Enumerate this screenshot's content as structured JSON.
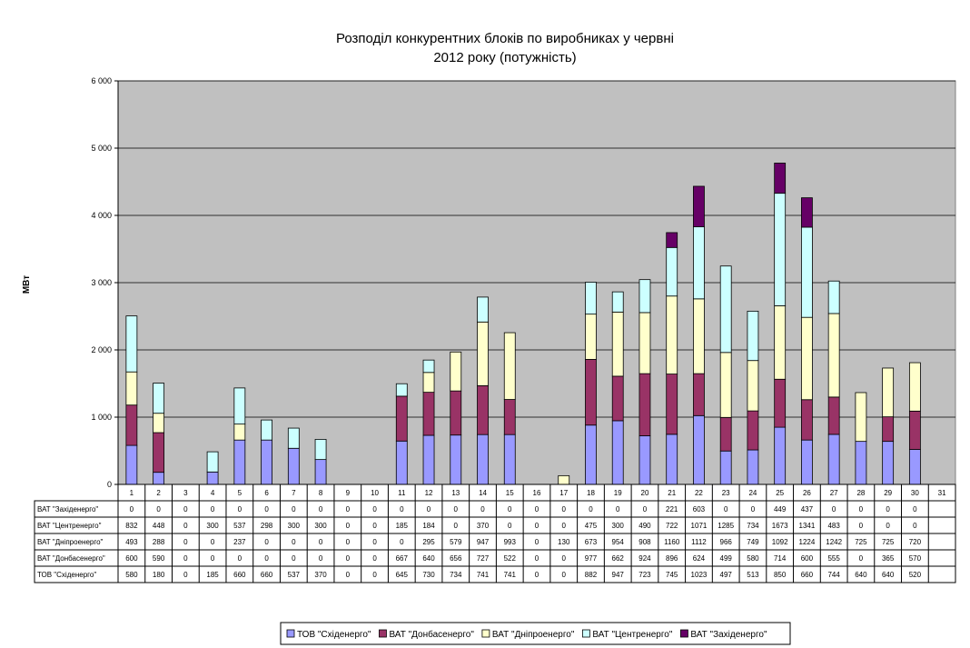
{
  "chart_data": {
    "type": "bar",
    "stacked": true,
    "title": [
      "Розподіл конкурентних блоків по виробниках у червні",
      "2012 року (потужність)"
    ],
    "ylabel": "МВт",
    "xlabel": "",
    "ylim": [
      0,
      6000
    ],
    "yticks": [
      0,
      1000,
      2000,
      3000,
      4000,
      5000,
      6000
    ],
    "ytick_labels": [
      "0",
      "1 000",
      "2 000",
      "3 000",
      "4 000",
      "5 000",
      "6 000"
    ],
    "grid": true,
    "plot_background": "#c0c0c0",
    "categories": [
      "1",
      "2",
      "3",
      "4",
      "5",
      "6",
      "7",
      "8",
      "9",
      "10",
      "11",
      "12",
      "13",
      "14",
      "15",
      "16",
      "17",
      "18",
      "19",
      "20",
      "21",
      "22",
      "23",
      "24",
      "25",
      "26",
      "27",
      "28",
      "29",
      "30",
      "31"
    ],
    "series": [
      {
        "name": "ТОВ \"Східенерго\"",
        "color": "#9999ff",
        "values": [
          580,
          180,
          0,
          185,
          660,
          660,
          537,
          370,
          0,
          0,
          645,
          730,
          734,
          741,
          741,
          0,
          0,
          882,
          947,
          723,
          745,
          1023,
          497,
          513,
          850,
          660,
          744,
          640,
          640,
          520,
          null
        ]
      },
      {
        "name": "ВАТ \"Донбасенерго\"",
        "color": "#993366",
        "values": [
          600,
          590,
          0,
          0,
          0,
          0,
          0,
          0,
          0,
          0,
          667,
          640,
          656,
          727,
          522,
          0,
          0,
          977,
          662,
          924,
          896,
          624,
          499,
          580,
          714,
          600,
          555,
          0,
          365,
          570,
          null
        ]
      },
      {
        "name": "ВАТ \"Дніпроенерго\"",
        "color": "#ffffcc",
        "values": [
          493,
          288,
          0,
          0,
          237,
          0,
          0,
          0,
          0,
          0,
          0,
          295,
          579,
          947,
          993,
          0,
          130,
          673,
          954,
          908,
          1160,
          1112,
          966,
          749,
          1092,
          1224,
          1242,
          725,
          725,
          720,
          null
        ]
      },
      {
        "name": "ВАТ \"Центренерго\"",
        "color": "#ccffff",
        "values": [
          832,
          448,
          0,
          300,
          537,
          298,
          300,
          300,
          0,
          0,
          185,
          184,
          0,
          370,
          0,
          0,
          0,
          475,
          300,
          490,
          722,
          1071,
          1285,
          734,
          1673,
          1341,
          483,
          0,
          0,
          0,
          null
        ]
      },
      {
        "name": "ВАТ \"Західенерго\"",
        "color": "#660066",
        "values": [
          0,
          0,
          0,
          0,
          0,
          0,
          0,
          0,
          0,
          0,
          0,
          0,
          0,
          0,
          0,
          0,
          0,
          0,
          0,
          0,
          221,
          603,
          0,
          0,
          449,
          437,
          0,
          0,
          0,
          0,
          null
        ]
      }
    ],
    "table_row_order": [
      4,
      3,
      2,
      1,
      0
    ],
    "legend_placement": "bottom-center"
  }
}
